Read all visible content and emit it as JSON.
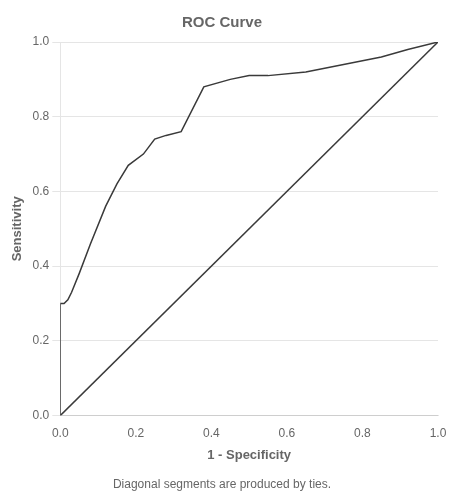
{
  "chart_data": {
    "type": "line",
    "title": "ROC Curve",
    "xlabel": "1 - Specificity",
    "ylabel": "Sensitivity",
    "footnote": "Diagonal segments are produced by ties.",
    "series": [
      {
        "x": [
          0.0,
          1.0
        ],
        "values": [
          0.0,
          1.0
        ],
        "color": "#3a3a3a"
      },
      {
        "x": [
          0.0,
          0.0,
          0.01,
          0.02,
          0.03,
          0.05,
          0.08,
          0.12,
          0.15,
          0.18,
          0.22,
          0.25,
          0.28,
          0.32,
          0.38,
          0.45,
          0.5,
          0.55,
          0.65,
          0.75,
          0.85,
          0.92,
          1.0
        ],
        "values": [
          0.0,
          0.3,
          0.3,
          0.31,
          0.33,
          0.38,
          0.46,
          0.56,
          0.62,
          0.67,
          0.7,
          0.74,
          0.75,
          0.76,
          0.88,
          0.9,
          0.91,
          0.91,
          0.92,
          0.94,
          0.96,
          0.98,
          1.0
        ],
        "color": "#3a3a3a"
      }
    ],
    "xlim": [
      0.0,
      1.0
    ],
    "ylim": [
      0.0,
      1.0
    ],
    "xticks": [
      {
        "value": 0.0,
        "label": "0.0"
      },
      0.2,
      0.4,
      0.6,
      0.8,
      {
        "value": 1.0,
        "label": "1.0"
      }
    ],
    "yticks": [
      {
        "value": 0.0,
        "label": "0.0"
      },
      0.2,
      0.4,
      0.6,
      0.8,
      {
        "value": 1.0,
        "label": "1.0"
      }
    ],
    "grid": "y"
  }
}
